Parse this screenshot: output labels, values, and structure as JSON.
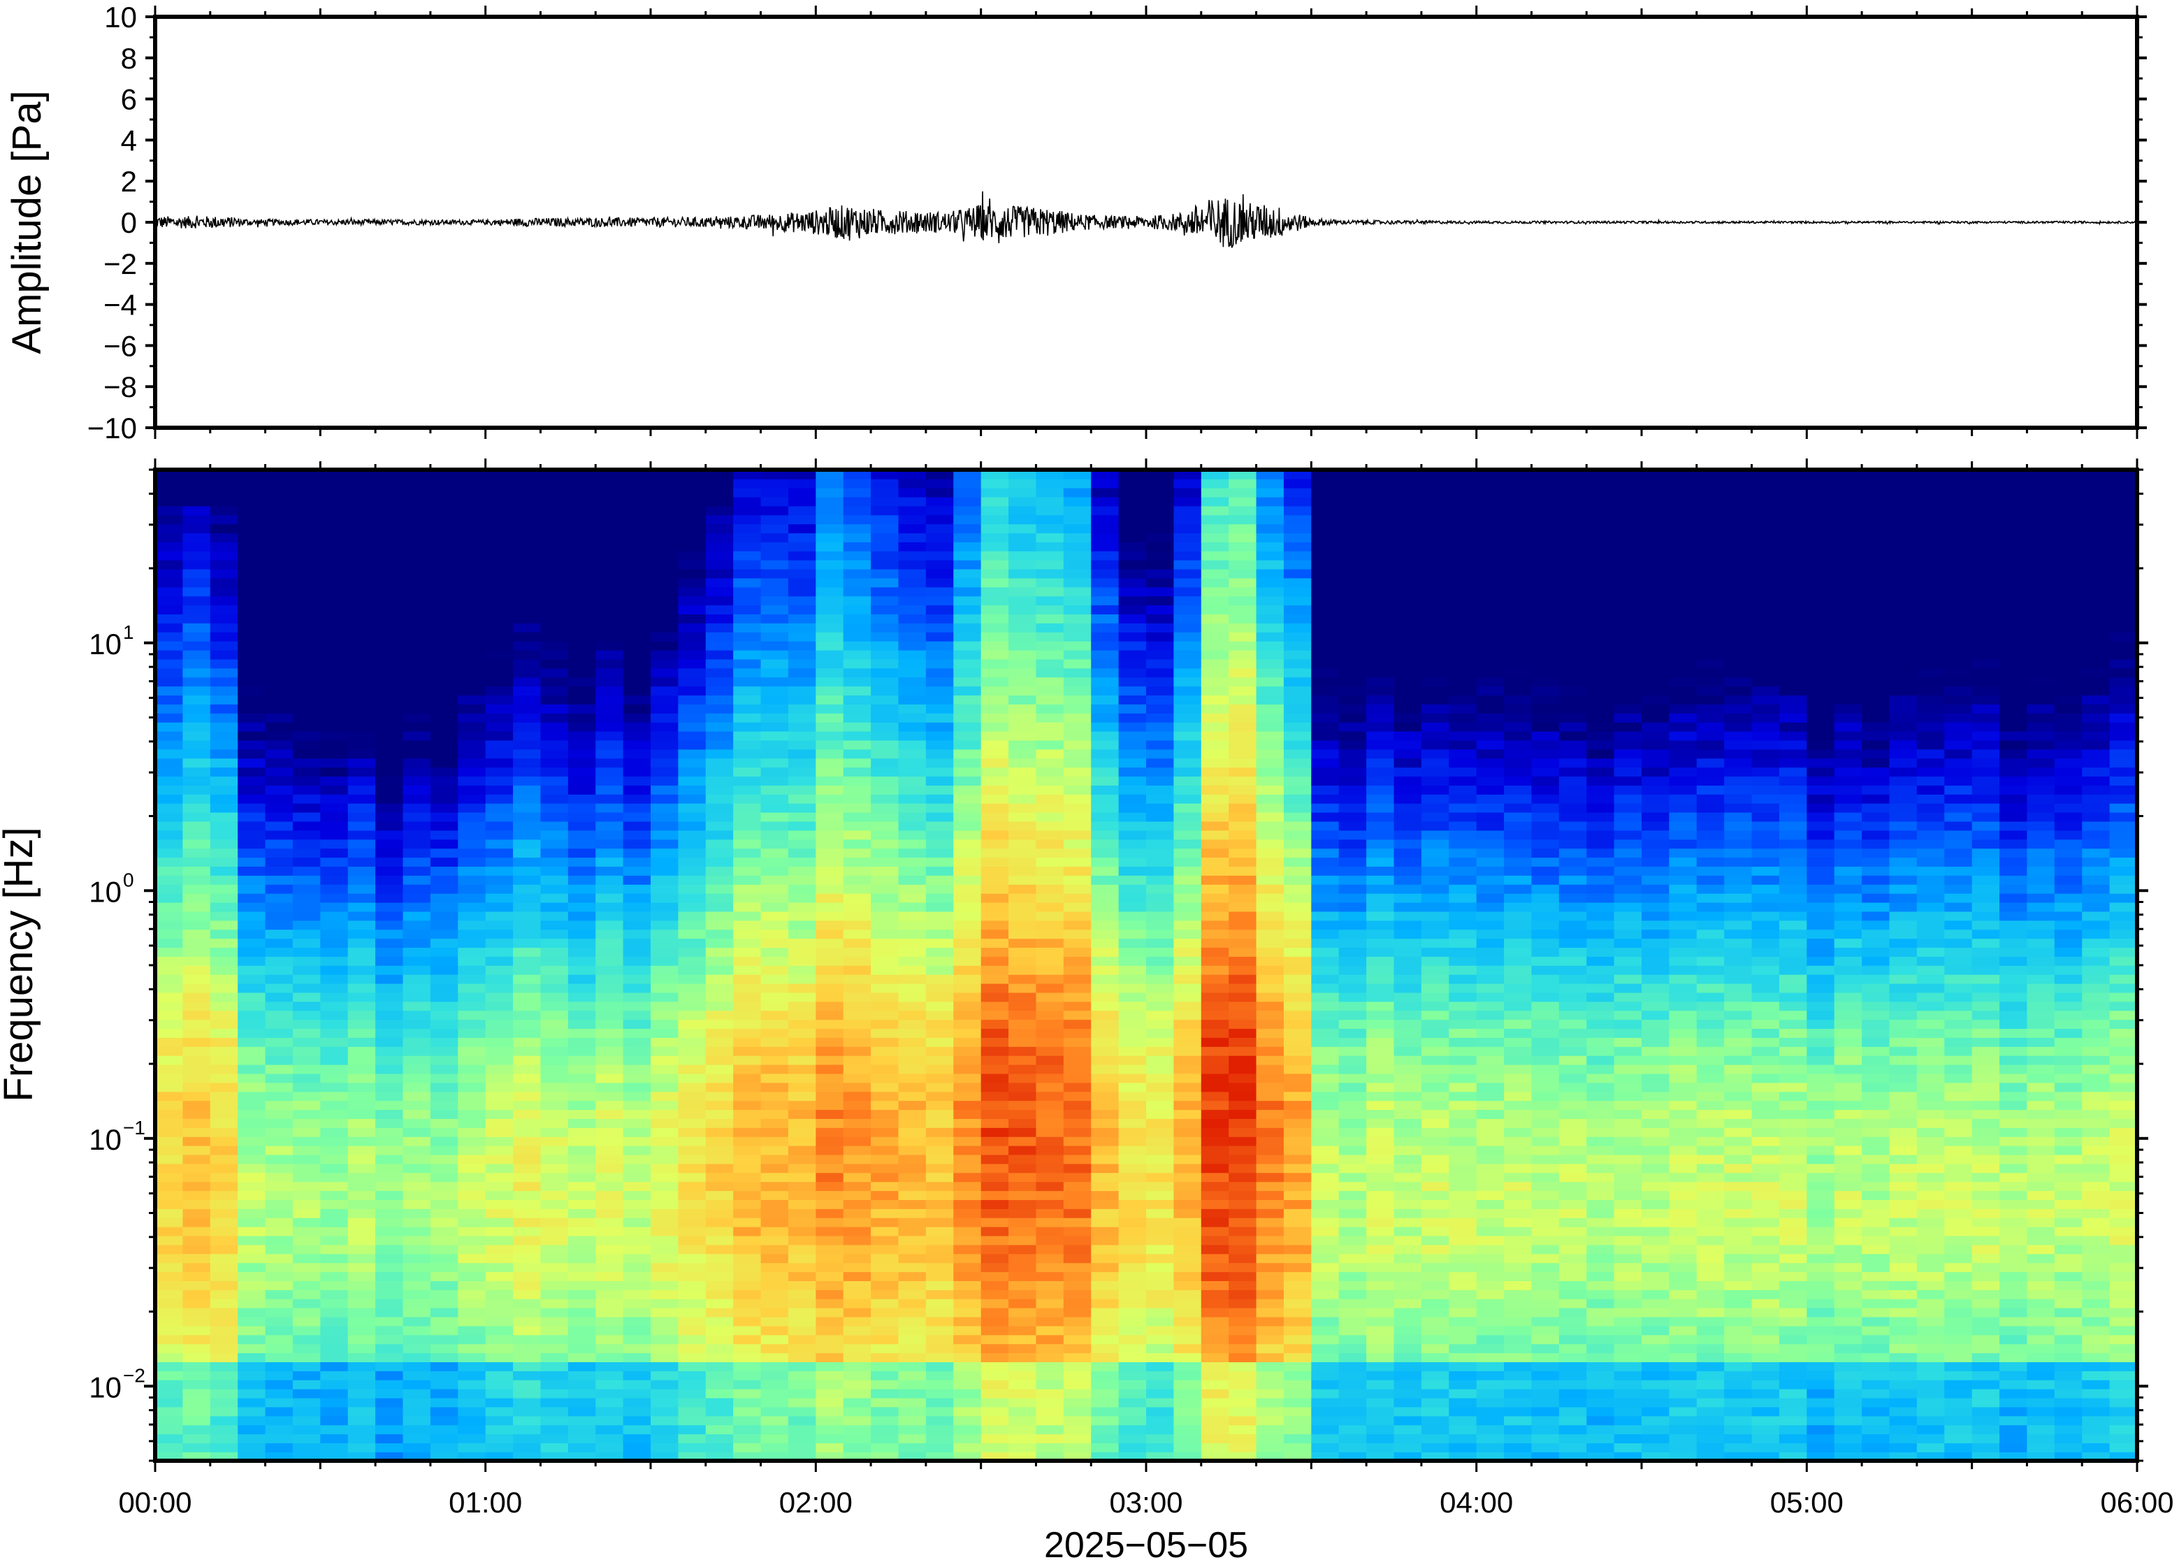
{
  "chart_data": [
    {
      "type": "line",
      "panel": "waveform",
      "ylabel": "Amplitude [Pa]",
      "ylim": [
        -10,
        10
      ],
      "yticks": [
        10,
        8,
        6,
        4,
        2,
        0,
        -2,
        -4,
        -6,
        -8,
        -10
      ],
      "ytick_labels": [
        "10",
        "8",
        "6",
        "4",
        "2",
        "0",
        "−2",
        "−4",
        "−6",
        "−8",
        "−10"
      ],
      "xlim_hours": [
        0,
        6
      ],
      "series_color": "#000000",
      "envelope": {
        "x_hours": [
          0.0,
          0.2,
          0.3,
          1.0,
          1.1,
          1.7,
          1.8,
          1.9,
          2.0,
          2.1,
          2.2,
          2.4,
          2.5,
          2.6,
          2.7,
          2.8,
          2.9,
          3.0,
          3.1,
          3.2,
          3.25,
          3.3,
          3.4,
          3.5,
          3.6,
          4.0,
          5.0,
          6.0
        ],
        "amplitude_pa": [
          0.3,
          0.3,
          0.15,
          0.12,
          0.2,
          0.25,
          0.35,
          0.45,
          0.6,
          0.9,
          0.6,
          0.5,
          0.9,
          0.8,
          0.7,
          0.4,
          0.3,
          0.3,
          0.45,
          1.2,
          1.3,
          1.0,
          0.8,
          0.2,
          0.1,
          0.06,
          0.05,
          0.05
        ]
      }
    },
    {
      "type": "heatmap",
      "panel": "spectrogram",
      "ylabel": "Frequency [Hz]",
      "xlabel": "2025−05−05",
      "yscale": "log",
      "ylim_hz": [
        0.005,
        50
      ],
      "yticks_hz": [
        0.01,
        0.1,
        1,
        10
      ],
      "ytick_labels": [
        {
          "base": "10",
          "exp": "−2"
        },
        {
          "base": "10",
          "exp": "−1"
        },
        {
          "base": "10",
          "exp": "0"
        },
        {
          "base": "10",
          "exp": "1"
        }
      ],
      "xlim_hours": [
        0,
        6
      ],
      "xticks": [
        "00:00",
        "01:00",
        "02:00",
        "03:00",
        "04:00",
        "05:00",
        "06:00"
      ],
      "colormap": [
        "#00007f",
        "#0000e0",
        "#0050ff",
        "#00b0ff",
        "#30e0e0",
        "#80ffa0",
        "#e0ff60",
        "#ffd040",
        "#ff8020",
        "#e02000"
      ],
      "activity": {
        "x_hours": [
          0.0,
          0.1,
          0.25,
          0.3,
          0.5,
          0.7,
          1.0,
          1.1,
          1.2,
          1.5,
          1.7,
          1.8,
          2.0,
          2.1,
          2.2,
          2.4,
          2.5,
          2.65,
          2.8,
          2.9,
          3.1,
          3.2,
          3.25,
          3.35,
          3.45,
          3.55,
          4.0,
          5.0,
          6.0
        ],
        "level": [
          0.5,
          0.55,
          0.45,
          0.25,
          0.2,
          0.2,
          0.25,
          0.4,
          0.3,
          0.3,
          0.55,
          0.6,
          0.7,
          0.8,
          0.7,
          0.6,
          0.9,
          0.85,
          0.8,
          0.5,
          0.5,
          0.9,
          0.95,
          0.85,
          0.7,
          0.3,
          0.25,
          0.25,
          0.3
        ]
      }
    }
  ]
}
